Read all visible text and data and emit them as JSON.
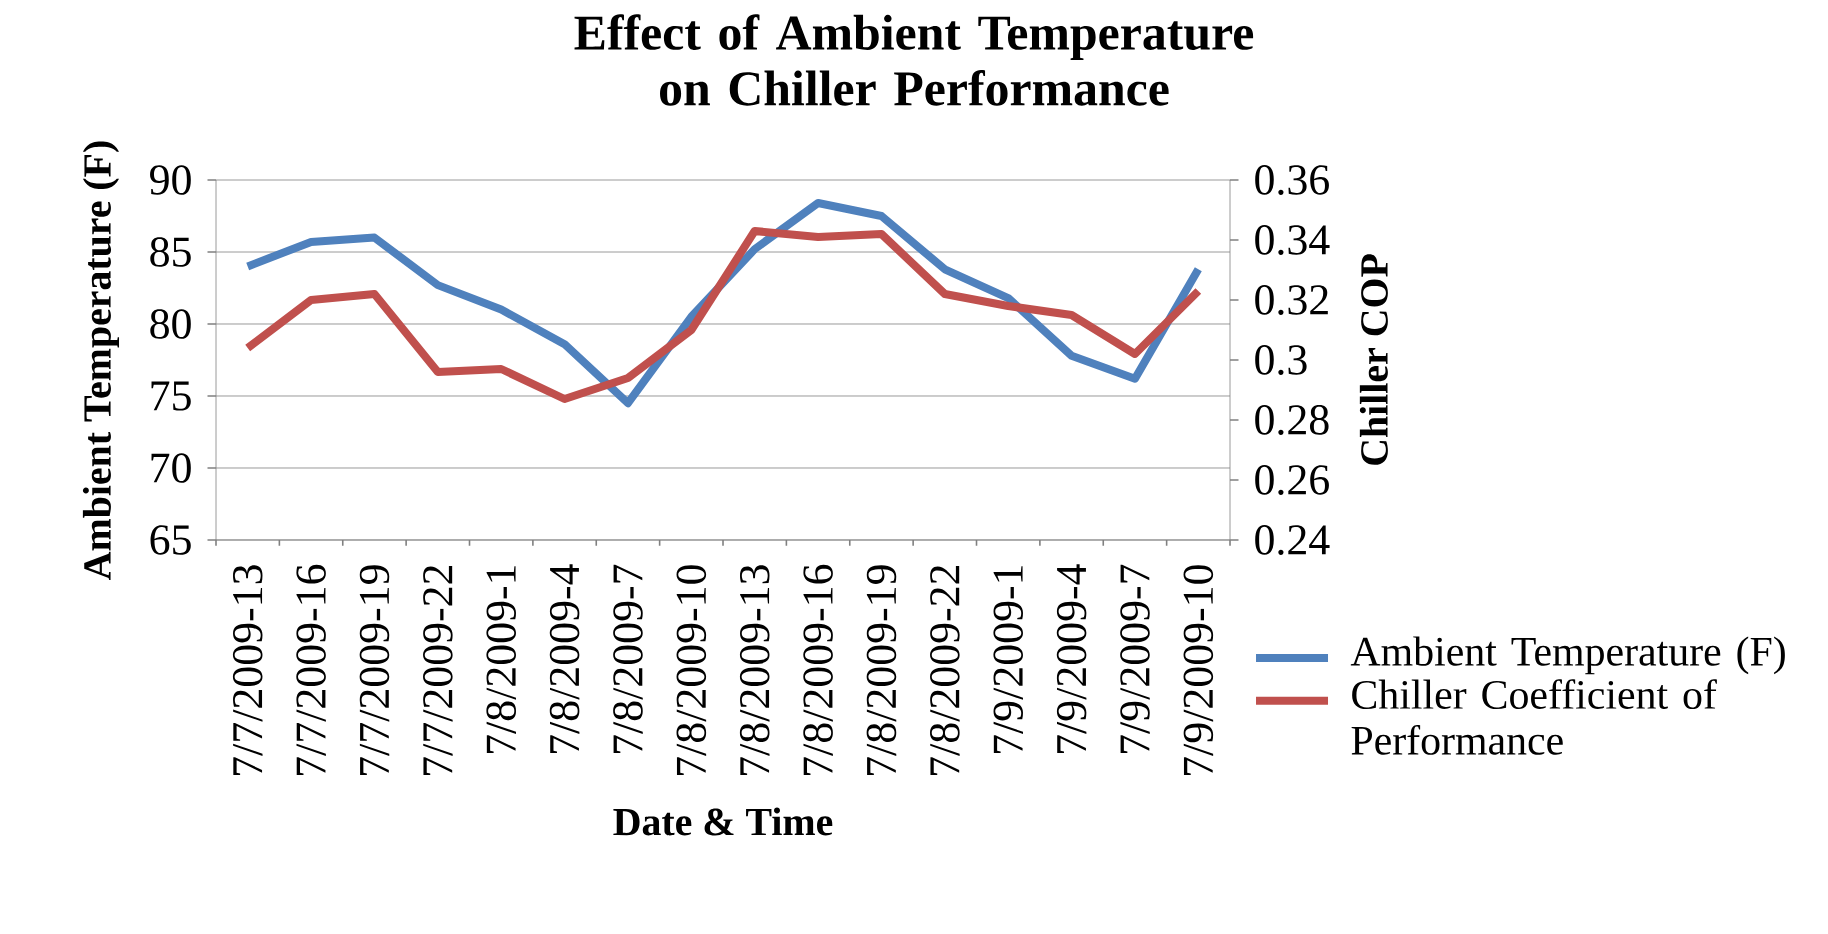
{
  "chart_data": {
    "type": "line",
    "title": "Effect of Ambient Temperature on Chiller Performance",
    "xlabel": "Date & Time",
    "ylabel": "Ambient Temperature (F)",
    "y2label": "Chiller COP",
    "categories": [
      "7/7/2009-13",
      "7/7/2009-16",
      "7/7/2009-19",
      "7/7/2009-22",
      "7/8/2009-1",
      "7/8/2009-4",
      "7/8/2009-7",
      "7/8/2009-10",
      "7/8/2009-13",
      "7/8/2009-16",
      "7/8/2009-19",
      "7/8/2009-22",
      "7/9/2009-1",
      "7/9/2009-4",
      "7/9/2009-7",
      "7/9/2009-10"
    ],
    "series": [
      {
        "name": "Ambient Temperature (F)",
        "color": "#4f81bd",
        "values": [
          84,
          85.7,
          86,
          82.7,
          81,
          78.6,
          74.5,
          80.5,
          85.2,
          88.4,
          87.5,
          83.8,
          81.8,
          77.8,
          76.2,
          83.8
        ]
      },
      {
        "name": "Chiller Coefficient of Performance",
        "color": "#c0504d",
        "axis": "y2",
        "values": [
          0.304,
          0.32,
          0.322,
          0.296,
          0.297,
          0.287,
          0.294,
          0.31,
          0.343,
          0.341,
          0.342,
          0.322,
          0.318,
          0.315,
          0.302,
          0.323
        ]
      }
    ],
    "ylim": [
      65,
      90
    ],
    "yticks": [
      65,
      70,
      75,
      80,
      85,
      90
    ],
    "y2lim": [
      0.24,
      0.36
    ],
    "y2ticks": [
      0.24,
      0.26,
      0.28,
      0.3,
      0.32,
      0.34,
      0.36
    ],
    "grid": "y",
    "legend": "right",
    "marker": "none",
    "line_style": "solid"
  }
}
